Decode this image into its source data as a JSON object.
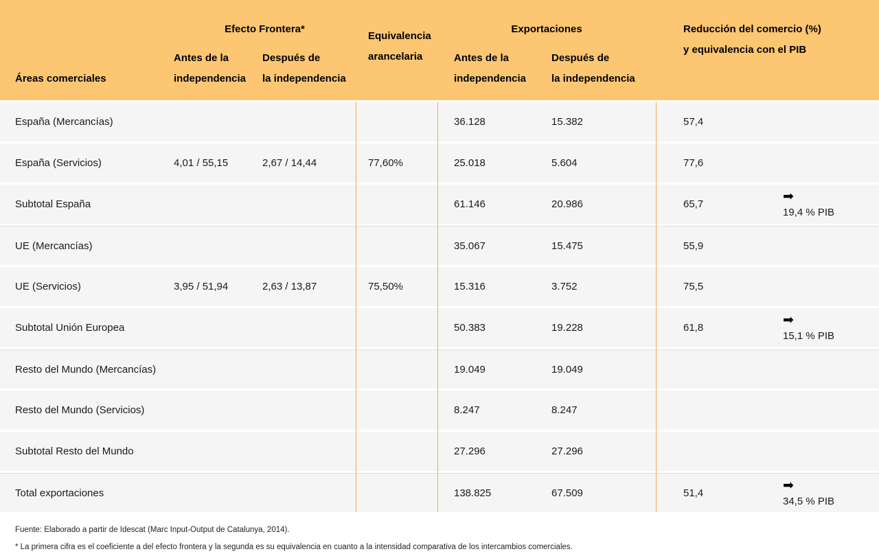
{
  "colors": {
    "header_bg": "#FCC672",
    "row_bg": "#F5F5F5",
    "column_divider": "#F2A84E",
    "group_separator": "#DCDCDC"
  },
  "icons": {
    "arrow_right": "➡"
  },
  "header": {
    "areas": "Áreas comerciales",
    "efecto_frontera": "Efecto Frontera*",
    "equivalencia": {
      "l1": "Equivalencia",
      "l2": "arancelaria"
    },
    "exportaciones": "Exportaciones",
    "reduccion": {
      "l1": "Reducción del comercio (%)",
      "l2": "y equivalencia con el PIB"
    },
    "sub_antes": {
      "l1": "Antes de la",
      "l2": "independencia"
    },
    "sub_despues": {
      "l1": "Después de",
      "l2": "la independencia"
    }
  },
  "chart_data": {
    "type": "table",
    "title": "",
    "columns": [
      "Áreas comerciales",
      "Efecto Frontera* — Antes de la independencia",
      "Efecto Frontera* — Después de la independencia",
      "Equivalencia arancelaria",
      "Exportaciones — Antes de la independencia",
      "Exportaciones — Después de la independencia",
      "Reducción del comercio (%)",
      "Equivalencia con el PIB"
    ],
    "rows": [
      [
        "España (Mercancías)",
        "",
        "",
        "",
        "36.128",
        "15.382",
        "57,4",
        ""
      ],
      [
        "España (Servicios)",
        "4,01 / 55,15",
        "2,67 / 14,44",
        "77,60%",
        "25.018",
        "5.604",
        "77,6",
        ""
      ],
      [
        "Subtotal España",
        "",
        "",
        "",
        "61.146",
        "20.986",
        "65,7",
        "19,4 % PIB"
      ],
      [
        "UE (Mercancías)",
        "",
        "",
        "",
        "35.067",
        "15.475",
        "55,9",
        ""
      ],
      [
        "UE (Servicios)",
        "3,95 / 51,94",
        "2,63 / 13,87",
        "75,50%",
        "15.316",
        "3.752",
        "75,5",
        ""
      ],
      [
        "Subtotal Unión Europea",
        "",
        "",
        "",
        "50.383",
        "19.228",
        "61,8",
        "15,1 %  PIB"
      ],
      [
        "Resto del Mundo (Mercancías)",
        "",
        "",
        "",
        "19.049",
        "19.049",
        "",
        ""
      ],
      [
        "Resto del Mundo (Servicios)",
        "",
        "",
        "",
        "8.247",
        "8.247",
        "",
        ""
      ],
      [
        "Subtotal Resto del Mundo",
        "",
        "",
        "",
        "27.296",
        "27.296",
        "",
        ""
      ],
      [
        "Total exportaciones",
        "",
        "",
        "",
        "138.825",
        "67.509",
        "51,4",
        "34,5 %  PIB"
      ]
    ]
  },
  "footnotes": {
    "fuente": "Fuente: Elaborado a partir de Idescat (Marc Input-Output de Catalunya, 2014).",
    "asterisco": "* La primera cifra es el coeficiente a del efecto frontera y la segunda es su equivalencia en cuanto a la intensidad comparativa de los intercambios comerciales."
  }
}
